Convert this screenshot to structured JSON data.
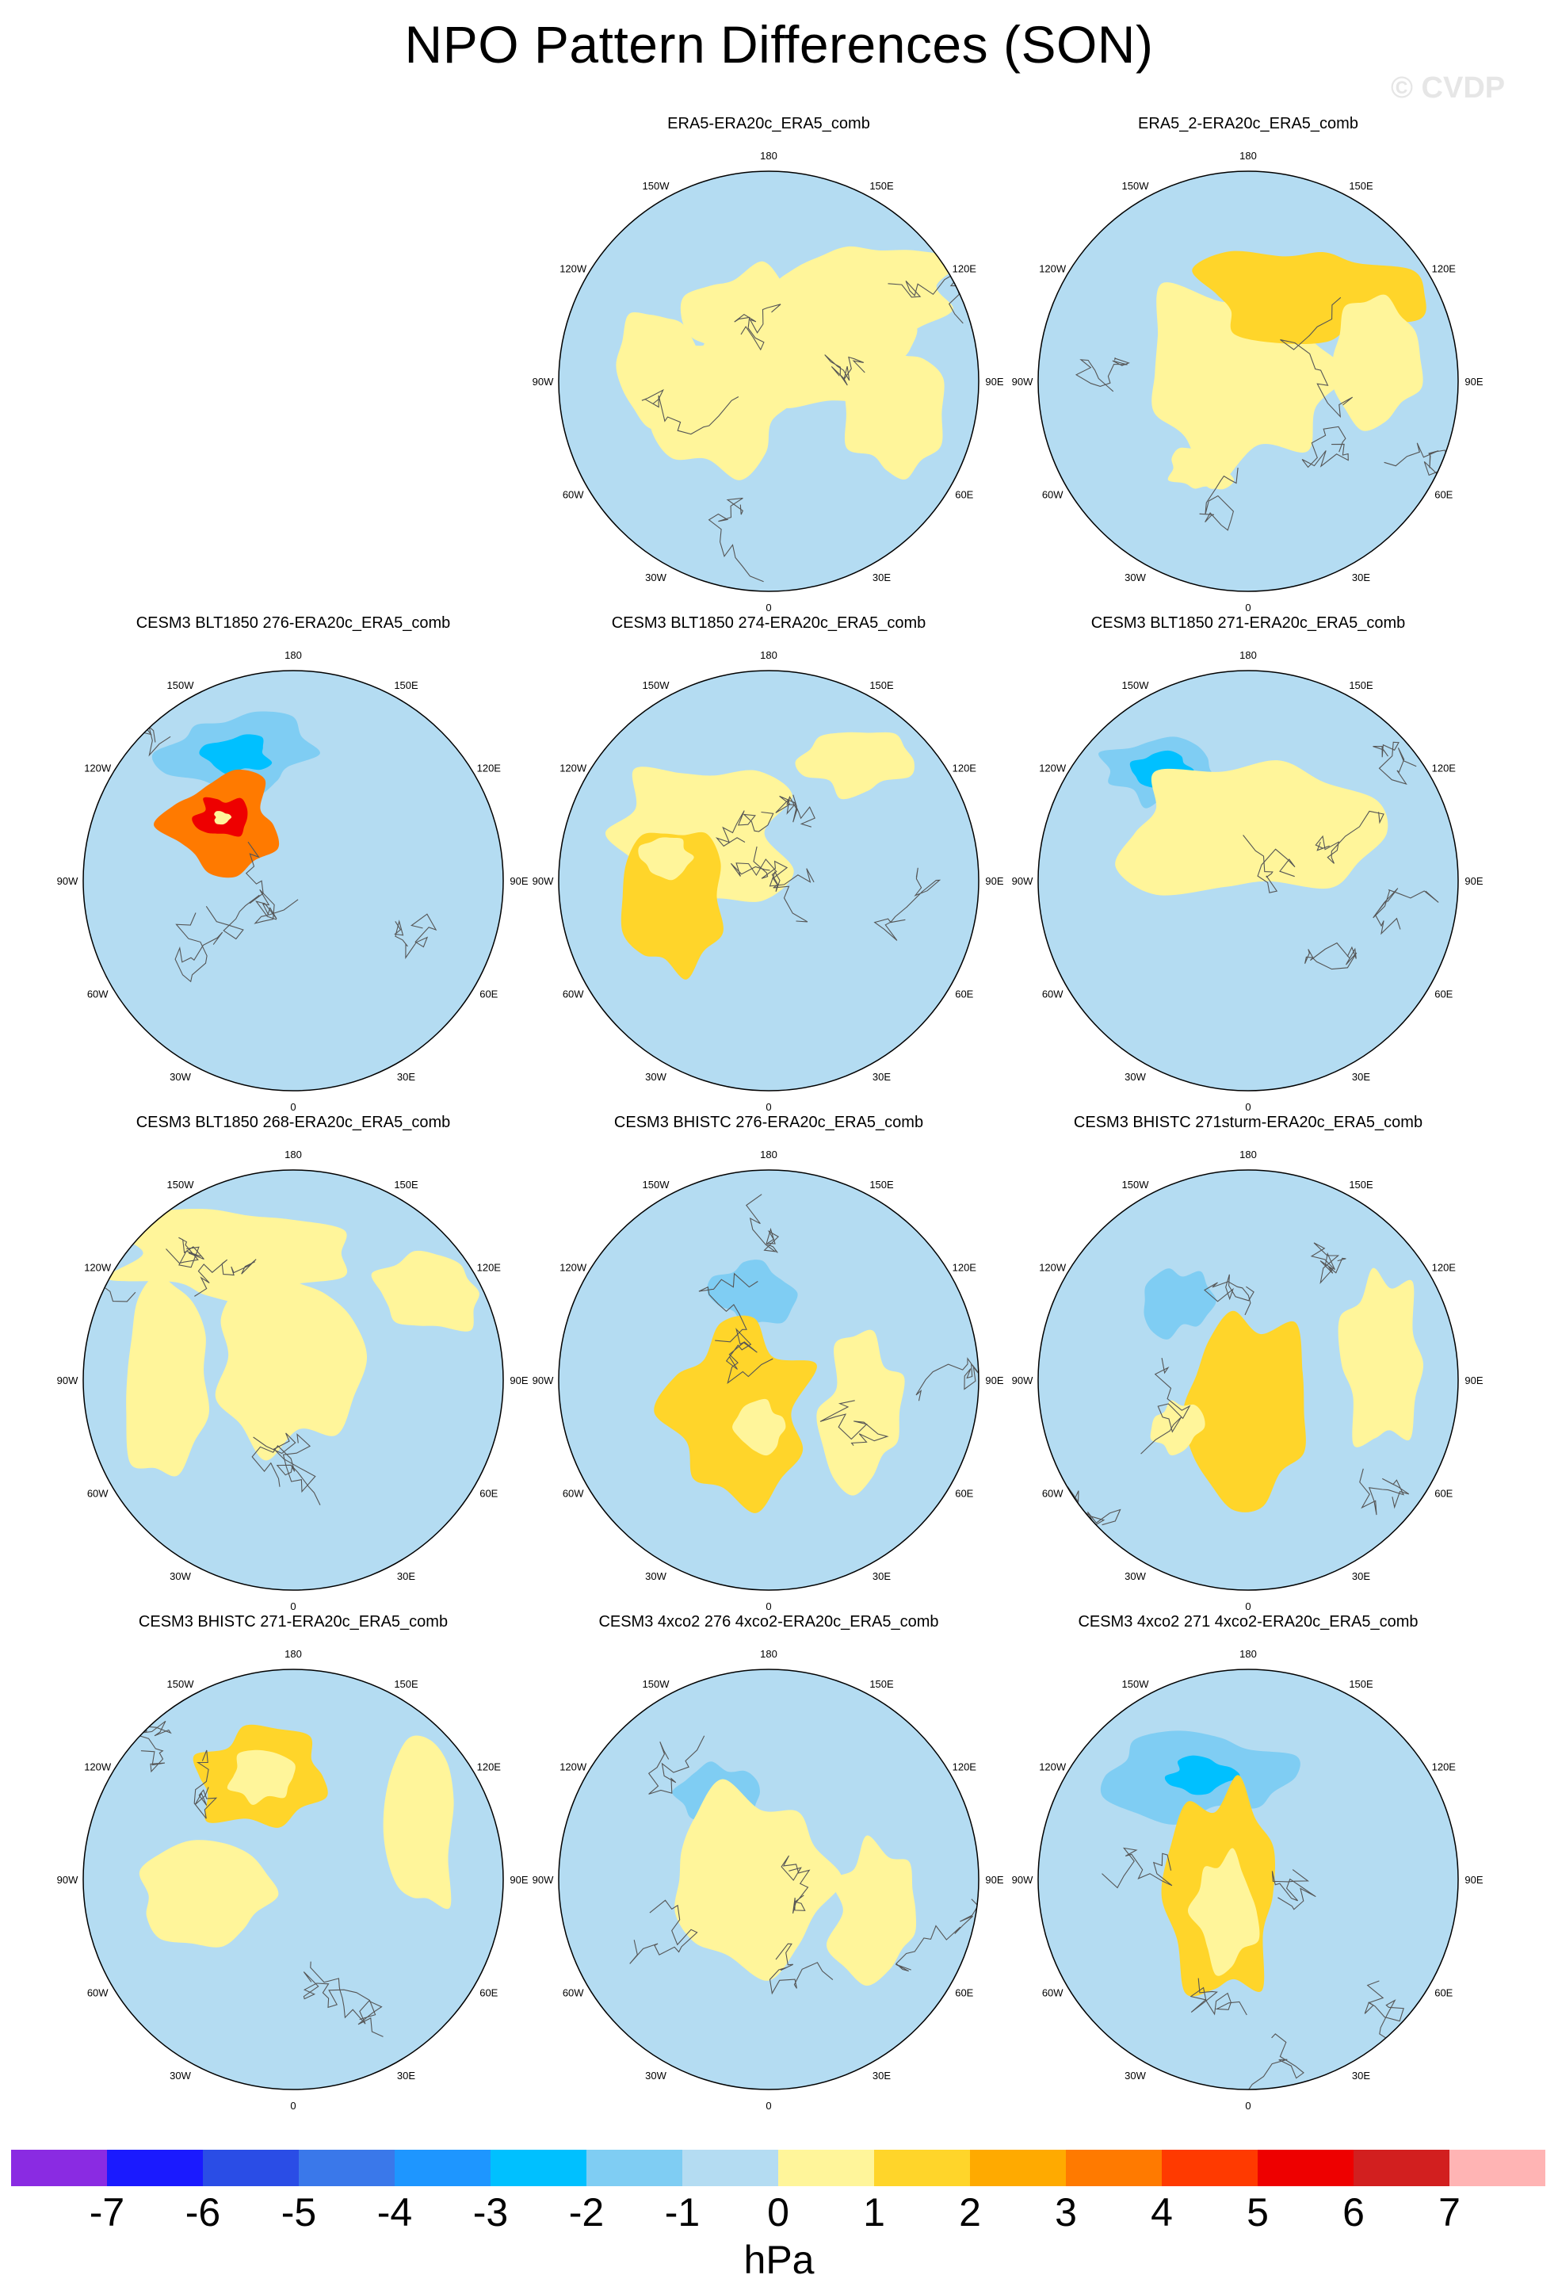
{
  "title": "NPO Pattern Differences (SON)",
  "watermark": "© CVDP",
  "lon_labels": [
    "180",
    "150E",
    "120E",
    "90E",
    "60E",
    "30E",
    "0",
    "30W",
    "60W",
    "90W",
    "120W",
    "150W"
  ],
  "panels": [
    {
      "title": "ERA5-ERA20c_ERA5_comb",
      "row": 0,
      "col": 1,
      "features": [
        {
          "level": 1,
          "shape": "band",
          "desc": "yellow arc eurasia"
        },
        {
          "level": 1,
          "shape": "blob",
          "desc": "atlantic"
        }
      ]
    },
    {
      "title": "ERA5_2-ERA20c_ERA5_comb",
      "row": 0,
      "col": 2,
      "features": [
        {
          "level": 1,
          "shape": "blob"
        },
        {
          "level": 2,
          "shape": "spot"
        }
      ]
    },
    {
      "title": "CESM3 BLT1850 276-ERA20c_ERA5_comb",
      "row": 1,
      "col": 0,
      "features": [
        {
          "level": -2,
          "shape": "blob"
        },
        {
          "level": -3,
          "shape": "core"
        },
        {
          "level": 4,
          "shape": "core"
        },
        {
          "level": 6,
          "shape": "core"
        }
      ]
    },
    {
      "title": "CESM3 BLT1850 274-ERA20c_ERA5_comb",
      "row": 1,
      "col": 1,
      "features": [
        {
          "level": 1,
          "shape": "blob"
        },
        {
          "level": 2,
          "shape": "spot"
        }
      ]
    },
    {
      "title": "CESM3 BLT1850 271-ERA20c_ERA5_comb",
      "row": 1,
      "col": 2,
      "features": [
        {
          "level": -2,
          "shape": "blob"
        },
        {
          "level": -3,
          "shape": "core"
        }
      ]
    },
    {
      "title": "CESM3 BLT1850 268-ERA20c_ERA5_comb",
      "row": 2,
      "col": 0,
      "features": [
        {
          "level": 1,
          "shape": "blob"
        }
      ]
    },
    {
      "title": "CESM3 BHISTC 276-ERA20c_ERA5_comb",
      "row": 2,
      "col": 1,
      "features": [
        {
          "level": -2,
          "shape": "blob"
        },
        {
          "level": 2,
          "shape": "spot"
        }
      ]
    },
    {
      "title": "CESM3 BHISTC 271sturm-ERA20c_ERA5_comb",
      "row": 2,
      "col": 2,
      "features": [
        {
          "level": -2,
          "shape": "blob"
        },
        {
          "level": 2,
          "shape": "spot"
        }
      ]
    },
    {
      "title": "CESM3 BHISTC 271-ERA20c_ERA5_comb",
      "row": 3,
      "col": 0,
      "features": [
        {
          "level": 2,
          "shape": "spot"
        }
      ]
    },
    {
      "title": "CESM3 4xco2 276 4xco2-ERA20c_ERA5_comb",
      "row": 3,
      "col": 1,
      "features": [
        {
          "level": -2,
          "shape": "blob"
        }
      ]
    },
    {
      "title": "CESM3 4xco2 271 4xco2-ERA20c_ERA5_comb",
      "row": 3,
      "col": 2,
      "features": [
        {
          "level": -2,
          "shape": "blob"
        },
        {
          "level": -3,
          "shape": "core"
        },
        {
          "level": 2,
          "shape": "spot"
        }
      ]
    }
  ],
  "colorbar": {
    "colors": [
      "#8a2be2",
      "#1a1aff",
      "#2a4de6",
      "#3a78ea",
      "#1e96ff",
      "#00c0ff",
      "#7fcdf3",
      "#b4dcf2",
      "#fff59a",
      "#ffd52a",
      "#ffaa00",
      "#ff7a00",
      "#ff3a00",
      "#ee0000",
      "#d21f1f",
      "#ffb4b4"
    ],
    "ticks": [
      "-7",
      "-6",
      "-5",
      "-4",
      "-3",
      "-2",
      "-1",
      "0",
      "1",
      "2",
      "3",
      "4",
      "5",
      "6",
      "7"
    ],
    "units": "hPa"
  }
}
